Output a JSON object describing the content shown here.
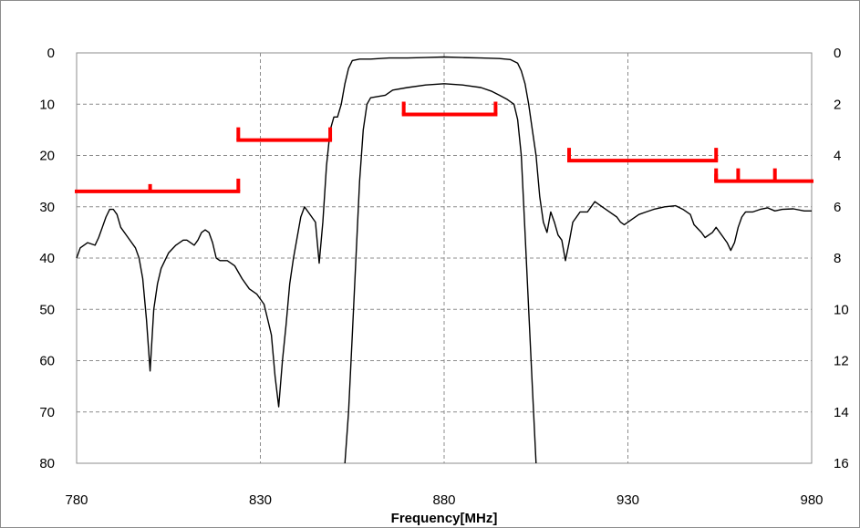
{
  "chart_data": {
    "type": "line",
    "title": "",
    "xlabel": "Frequency[MHz]",
    "ylabel_left": "",
    "ylabel_right": "",
    "xlim": [
      780,
      980
    ],
    "ylim_left": [
      0,
      80
    ],
    "ylim_right": [
      0,
      16
    ],
    "left_axis_inverted": true,
    "right_axis_inverted": true,
    "grid": true,
    "x_ticks": [
      "780",
      "830",
      "880",
      "930",
      "980"
    ],
    "y_ticks_left": [
      "0",
      "10",
      "20",
      "30",
      "40",
      "50",
      "60",
      "70",
      "80"
    ],
    "y_ticks_right": [
      "0",
      "2",
      "4",
      "6",
      "8",
      "10",
      "12",
      "14",
      "16"
    ],
    "series": [
      {
        "axis": "left",
        "color": "#000000",
        "values": [
          [
            780,
            40
          ],
          [
            781,
            38
          ],
          [
            783,
            37
          ],
          [
            785,
            37.5
          ],
          [
            786,
            36
          ],
          [
            787,
            34
          ],
          [
            788,
            32
          ],
          [
            789,
            30.5
          ],
          [
            790,
            30.5
          ],
          [
            791,
            31.5
          ],
          [
            792,
            34
          ],
          [
            794,
            36
          ],
          [
            796,
            38
          ],
          [
            797,
            40
          ],
          [
            798,
            44
          ],
          [
            799,
            52
          ],
          [
            800,
            62
          ],
          [
            801,
            50
          ],
          [
            802,
            45
          ],
          [
            803,
            42
          ],
          [
            805,
            39
          ],
          [
            807,
            37.5
          ],
          [
            809,
            36.5
          ],
          [
            810,
            36.5
          ],
          [
            812,
            37.5
          ],
          [
            813,
            36.5
          ],
          [
            814,
            35
          ],
          [
            815,
            34.5
          ],
          [
            816,
            35
          ],
          [
            817,
            37
          ],
          [
            818,
            40
          ],
          [
            819,
            40.5
          ],
          [
            821,
            40.5
          ],
          [
            823,
            41.5
          ],
          [
            825,
            44
          ],
          [
            827,
            46
          ],
          [
            829,
            47
          ],
          [
            831,
            49
          ],
          [
            832,
            52
          ],
          [
            833,
            55
          ],
          [
            834,
            63
          ],
          [
            835,
            69
          ],
          [
            836,
            60
          ],
          [
            837,
            53
          ],
          [
            838,
            45
          ],
          [
            839,
            40
          ],
          [
            840,
            36
          ],
          [
            841,
            32
          ],
          [
            842,
            30
          ],
          [
            843,
            31
          ],
          [
            844,
            32
          ],
          [
            845,
            33
          ],
          [
            846,
            41
          ],
          [
            847,
            33
          ],
          [
            848,
            22
          ],
          [
            849,
            15
          ],
          [
            850,
            12.5
          ],
          [
            851,
            12.5
          ],
          [
            852,
            10
          ],
          [
            853,
            6
          ],
          [
            854,
            3
          ],
          [
            855,
            1.5
          ],
          [
            857,
            1.2
          ],
          [
            860,
            1.2
          ],
          [
            865,
            1.0
          ],
          [
            870,
            1.0
          ],
          [
            875,
            0.9
          ],
          [
            880,
            0.8
          ],
          [
            885,
            0.9
          ],
          [
            890,
            1.0
          ],
          [
            895,
            1.1
          ],
          [
            898,
            1.3
          ],
          [
            900,
            2
          ],
          [
            901,
            3.5
          ],
          [
            902,
            6
          ],
          [
            903,
            10
          ],
          [
            904,
            15
          ],
          [
            905,
            20
          ],
          [
            906,
            28
          ],
          [
            907,
            33
          ],
          [
            908,
            35
          ],
          [
            909,
            31
          ],
          [
            910,
            33
          ],
          [
            911,
            35.5
          ],
          [
            912,
            36.5
          ],
          [
            913,
            40.5
          ],
          [
            914,
            37
          ],
          [
            915,
            33
          ],
          [
            917,
            31
          ],
          [
            919,
            31
          ],
          [
            920,
            30
          ],
          [
            921,
            29
          ],
          [
            923,
            30
          ],
          [
            925,
            31
          ],
          [
            927,
            32
          ],
          [
            928,
            33
          ],
          [
            929,
            33.5
          ],
          [
            931,
            32.5
          ],
          [
            933,
            31.5
          ],
          [
            935,
            31
          ],
          [
            937,
            30.5
          ],
          [
            940,
            30
          ],
          [
            943,
            29.8
          ],
          [
            945,
            30.5
          ],
          [
            947,
            31.5
          ],
          [
            948,
            33.5
          ],
          [
            950,
            35
          ],
          [
            951,
            36
          ],
          [
            953,
            35
          ],
          [
            954,
            34
          ],
          [
            955,
            35
          ],
          [
            956,
            36
          ],
          [
            957,
            37
          ],
          [
            958,
            38.5
          ],
          [
            959,
            37
          ],
          [
            960,
            34
          ],
          [
            961,
            32
          ],
          [
            962,
            31
          ],
          [
            964,
            31
          ],
          [
            966,
            30.5
          ],
          [
            968,
            30.2
          ],
          [
            970,
            30.8
          ],
          [
            972,
            30.5
          ],
          [
            975,
            30.4
          ],
          [
            978,
            30.8
          ],
          [
            980,
            30.8
          ]
        ]
      },
      {
        "axis": "right",
        "color": "#000000",
        "values": [
          [
            853,
            16
          ],
          [
            854,
            14
          ],
          [
            855,
            11
          ],
          [
            856,
            8
          ],
          [
            857,
            5
          ],
          [
            858,
            3
          ],
          [
            859,
            2
          ],
          [
            860,
            1.75
          ],
          [
            862,
            1.7
          ],
          [
            864,
            1.65
          ],
          [
            866,
            1.45
          ],
          [
            870,
            1.35
          ],
          [
            875,
            1.25
          ],
          [
            880,
            1.2
          ],
          [
            885,
            1.25
          ],
          [
            890,
            1.35
          ],
          [
            893,
            1.5
          ],
          [
            895,
            1.65
          ],
          [
            897,
            1.8
          ],
          [
            899,
            2.0
          ],
          [
            900,
            2.6
          ],
          [
            901,
            4
          ],
          [
            902,
            7
          ],
          [
            903,
            10
          ],
          [
            904,
            13
          ],
          [
            905,
            16
          ]
        ]
      }
    ],
    "mask_segments": [
      {
        "color": "#ff0000",
        "x": [
          780,
          824
        ],
        "y": 27,
        "ticks_up": [
          824
        ],
        "ticks_down": [
          800
        ]
      },
      {
        "color": "#ff0000",
        "x": [
          824,
          849
        ],
        "y": 17,
        "ticks_up": [
          824,
          849
        ],
        "ticks_down": []
      },
      {
        "color": "#ff0000",
        "x": [
          869,
          894
        ],
        "y": 12,
        "ticks_up": [
          869,
          894
        ],
        "ticks_down": []
      },
      {
        "color": "#ff0000",
        "x": [
          914,
          954
        ],
        "y": 21,
        "ticks_up": [
          914,
          954
        ],
        "ticks_down": []
      },
      {
        "color": "#ff0000",
        "x": [
          954,
          980
        ],
        "y": 25,
        "ticks_up": [
          954,
          960,
          970
        ],
        "ticks_down": [
          954
        ]
      }
    ]
  }
}
